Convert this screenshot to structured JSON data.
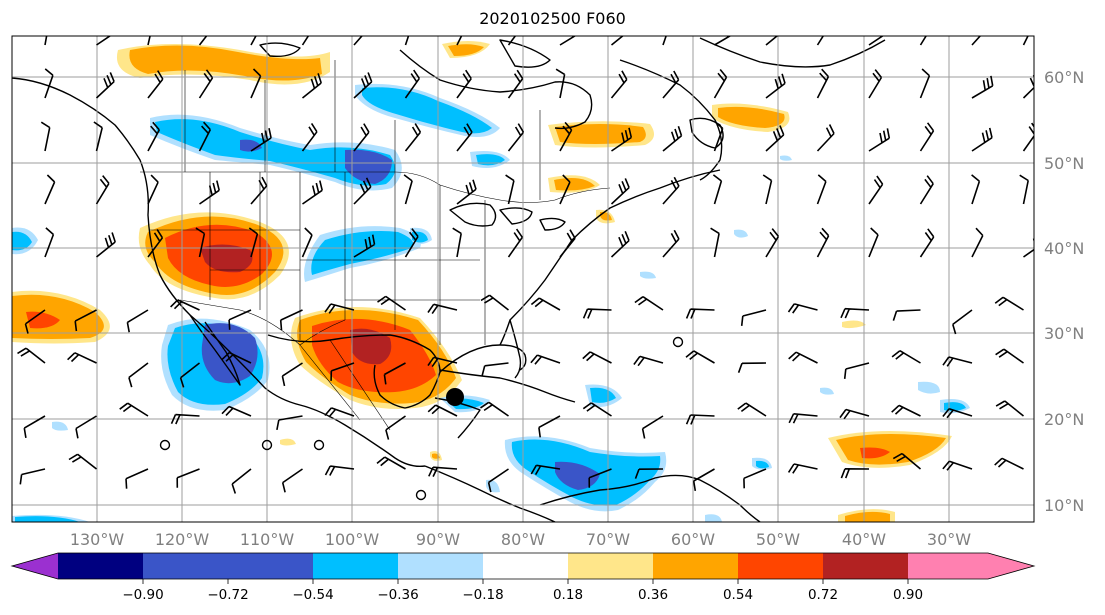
{
  "title": "2020102500 F060",
  "map": {
    "lon_labels": [
      "130°W",
      "120°W",
      "110°W",
      "100°W",
      "90°W",
      "80°W",
      "70°W",
      "60°W",
      "50°W",
      "40°W",
      "30°W"
    ],
    "lat_labels": [
      "60°N",
      "50°N",
      "40°N",
      "30°N",
      "20°N",
      "10°N"
    ],
    "marker": "storm-center-marker"
  },
  "colorbar": {
    "ticks": [
      "−0.90",
      "−0.72",
      "−0.54",
      "−0.36",
      "−0.18",
      "0.18",
      "0.36",
      "0.54",
      "0.72",
      "0.90"
    ],
    "colors": [
      "#9b30d0",
      "#000080",
      "#3a55c8",
      "#00bfff",
      "#b0e0ff",
      "#ffffff",
      "#ffe68a",
      "#ffa500",
      "#ff4500",
      "#b22222",
      "#ff80b0"
    ]
  },
  "colors": {
    "dark_blue": "#3a55c8",
    "blue": "#00bfff",
    "light_blue": "#b0e0ff",
    "light_yellow": "#ffe68a",
    "orange": "#ffa500",
    "red_orange": "#ff4500",
    "dark_red": "#b22222",
    "grid": "#9e9e9e"
  }
}
